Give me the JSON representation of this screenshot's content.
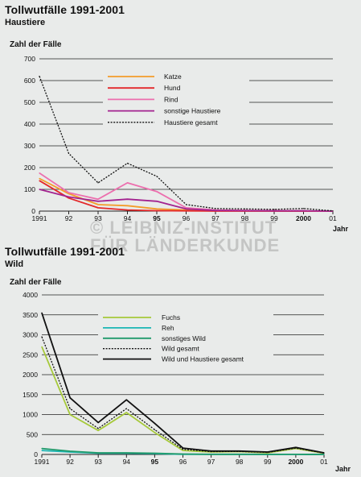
{
  "watermark": {
    "line1": "© LEIBNIZ-INSTITUT",
    "line2": "FÜR LÄNDERKUNDE"
  },
  "charts": [
    {
      "title": "Tollwutfälle 1991-2001",
      "subtitle": "Haustiere"
    },
    {
      "title": "Tollwutfälle 1991-2001",
      "subtitle": "Wild"
    }
  ],
  "chart_data": [
    {
      "type": "line",
      "title": "Tollwutfälle 1991-2001",
      "subtitle": "Haustiere",
      "ylabel": "Zahl der Fälle",
      "xlabel": "Jahr",
      "x": [
        "1991",
        "92",
        "93",
        "94",
        "95",
        "96",
        "97",
        "98",
        "99",
        "2000",
        "01"
      ],
      "x_bold": [
        "95",
        "2000"
      ],
      "ylim": [
        0,
        700
      ],
      "yticks": [
        "0",
        "100",
        "200",
        "300",
        "400",
        "500",
        "600",
        "700"
      ],
      "grid": true,
      "legend_position": "top-center",
      "series": [
        {
          "name": "Katze",
          "color": "#f39c2a",
          "dash": false,
          "values": [
            150,
            80,
            30,
            25,
            10,
            5,
            2,
            1,
            1,
            0,
            0
          ]
        },
        {
          "name": "Hund",
          "color": "#e3282a",
          "dash": false,
          "values": [
            140,
            60,
            15,
            5,
            2,
            1,
            0,
            0,
            0,
            0,
            0
          ]
        },
        {
          "name": "Rind",
          "color": "#ec6fae",
          "dash": false,
          "values": [
            175,
            85,
            55,
            130,
            90,
            15,
            5,
            3,
            2,
            1,
            0
          ]
        },
        {
          "name": "sonstige Haustiere",
          "color": "#a3238f",
          "dash": false,
          "values": [
            100,
            65,
            45,
            55,
            45,
            10,
            3,
            2,
            1,
            1,
            0
          ]
        },
        {
          "name": "Haustiere gesamt",
          "color": "#111111",
          "dash": true,
          "values": [
            620,
            265,
            130,
            220,
            160,
            30,
            12,
            10,
            8,
            12,
            1
          ]
        }
      ]
    },
    {
      "type": "line",
      "title": "Tollwutfälle 1991-2001",
      "subtitle": "Wild",
      "ylabel": "Zahl der Fälle",
      "xlabel": "Jahr",
      "x": [
        "1991",
        "92",
        "93",
        "94",
        "95",
        "96",
        "97",
        "98",
        "99",
        "2000",
        "01"
      ],
      "x_bold": [
        "95",
        "2000"
      ],
      "ylim": [
        0,
        4000
      ],
      "yticks": [
        "0",
        "500",
        "1000",
        "1500",
        "2000",
        "2500",
        "3000",
        "3500",
        "4000"
      ],
      "grid": true,
      "legend_position": "top-center",
      "series": [
        {
          "name": "Fuchs",
          "color": "#a6c93a",
          "dash": false,
          "values": [
            2700,
            1000,
            600,
            1050,
            550,
            100,
            60,
            70,
            40,
            150,
            30
          ]
        },
        {
          "name": "Reh",
          "color": "#1bb6b4",
          "dash": false,
          "values": [
            100,
            60,
            30,
            30,
            20,
            5,
            3,
            2,
            1,
            2,
            1
          ]
        },
        {
          "name": "sonstiges Wild",
          "color": "#1f9a6a",
          "dash": false,
          "values": [
            150,
            80,
            40,
            40,
            30,
            10,
            5,
            4,
            2,
            3,
            1
          ]
        },
        {
          "name": "Wild gesamt",
          "color": "#111111",
          "dash": true,
          "values": [
            2950,
            1150,
            650,
            1150,
            620,
            130,
            70,
            75,
            50,
            160,
            35
          ]
        },
        {
          "name": "Wild und Haustiere gesamt",
          "color": "#111111",
          "dash": false,
          "values": [
            3550,
            1420,
            800,
            1370,
            780,
            160,
            85,
            85,
            60,
            175,
            40
          ]
        }
      ]
    }
  ]
}
